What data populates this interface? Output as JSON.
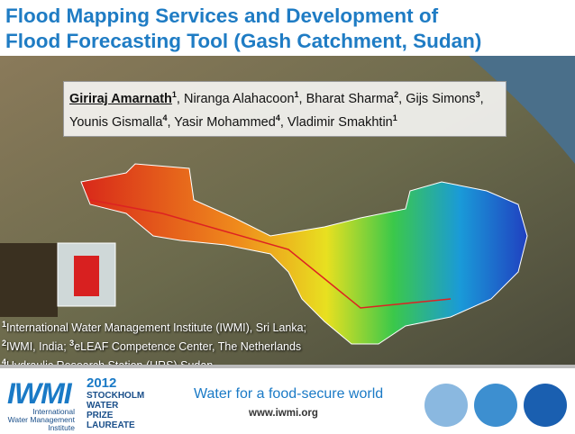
{
  "header": {
    "title_lines": [
      "Flood Mapping Services and Development of",
      "Flood Forecasting Tool (Gash Catchment, Sudan)"
    ]
  },
  "authors": [
    {
      "name": "Giriraj Amarnath",
      "sup": "1",
      "sep": ","
    },
    {
      "name": "Niranga Alahacoon",
      "sup": "1",
      "sep": ","
    },
    {
      "name": "Bharat Sharma",
      "sup": "2",
      "sep": ","
    },
    {
      "name": "Gijs Simons",
      "sup": "3",
      "sep": ","
    },
    {
      "name": "Younis Gismalla",
      "sup": "4",
      "sep": ","
    },
    {
      "name": "Yasir Mohammed",
      "sup": "4",
      "sep": ","
    },
    {
      "name": "Vladimir Smakhtin",
      "sup": "1"
    }
  ],
  "affiliations": [
    [
      {
        "sup": "1",
        "text": "International Water Management Institute (IWMI), Sri Lanka;"
      }
    ],
    [
      {
        "sup": "2",
        "text": "IWMI, India; "
      },
      {
        "sup": "3",
        "text": "eLEAF Competence Center, The Netherlands"
      }
    ],
    [
      {
        "sup": "4",
        "text": "Hydraulic Research Station (HRS) Sudan"
      }
    ]
  ],
  "footer": {
    "logo": "IWMI",
    "logo_lines": [
      "International",
      "Water Management",
      "Institute"
    ],
    "prize": [
      "2012",
      "STOCKHOLM",
      "WATER",
      "PRIZE",
      "LAUREATE"
    ],
    "tagline": "Water for a food-secure world",
    "url": "www.iwmi.org"
  }
}
